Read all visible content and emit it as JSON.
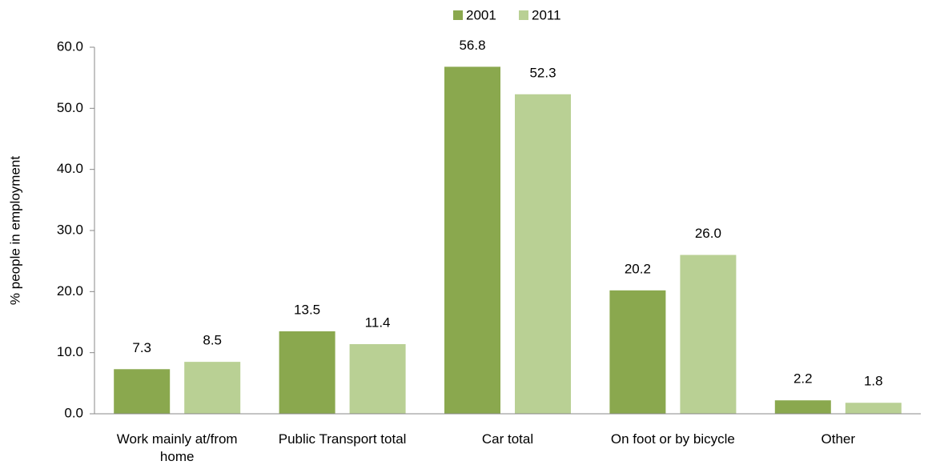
{
  "chart_data": {
    "type": "bar",
    "y_label": "% people in employment",
    "categories": [
      "Work mainly at/from home",
      "Public Transport total",
      "Car total",
      "On foot or by bicycle",
      "Other"
    ],
    "series": [
      {
        "name": "2001",
        "color": "#8aa84e",
        "values": [
          7.3,
          13.5,
          56.8,
          20.2,
          2.2
        ],
        "value_labels": [
          "7.3",
          "13.5",
          "56.8",
          "20.2",
          "2.2"
        ]
      },
      {
        "name": "2011",
        "color": "#b9d094",
        "values": [
          8.5,
          11.4,
          52.3,
          26,
          1.8
        ],
        "value_labels": [
          "8.5",
          "11.4",
          "52.3",
          "26.0",
          "1.8"
        ]
      }
    ],
    "ylim": [
      0,
      60
    ],
    "yticks": [
      {
        "value": 0,
        "label": "0.0"
      },
      {
        "value": 10,
        "label": "10.0"
      },
      {
        "value": 20,
        "label": "20.0"
      },
      {
        "value": 30,
        "label": "30.0"
      },
      {
        "value": 40,
        "label": "40.0"
      },
      {
        "value": 50,
        "label": "50.0"
      },
      {
        "value": 60,
        "label": "60.0"
      }
    ],
    "legend": "top"
  }
}
